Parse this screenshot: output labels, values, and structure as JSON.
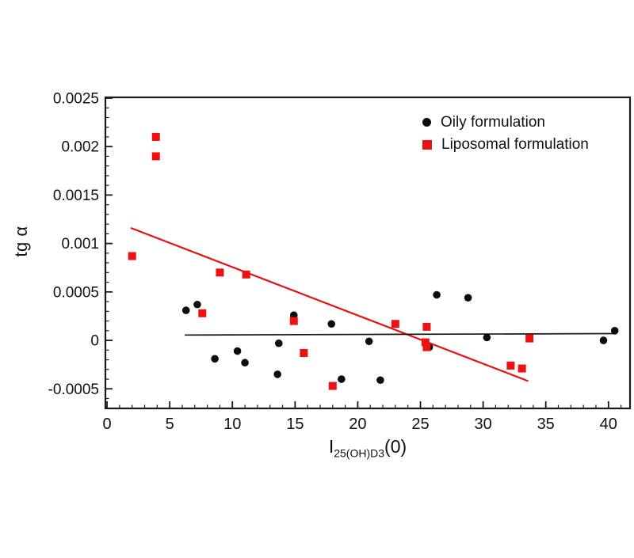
{
  "figure": {
    "background": "#ffffff"
  },
  "chart_data": {
    "type": "scatter",
    "title": "",
    "ylabel": "tg α",
    "xlabel": {
      "base": "I",
      "subscript": "25(OH)D3",
      "suffix": "(0)"
    },
    "xlim": [
      -0.13,
      41.72
    ],
    "ylim": [
      -0.000702,
      0.002508
    ],
    "grid": false,
    "axis_color": "#1a1a1a",
    "x_ticks": [
      0,
      5,
      10,
      15,
      20,
      25,
      30,
      35,
      40
    ],
    "x_tick_labels": [
      "0",
      "5",
      "10",
      "15",
      "20",
      "25",
      "30",
      "35",
      "40"
    ],
    "x_minor_step": 1,
    "y_ticks": [
      -0.0005,
      0,
      0.0005,
      0.001,
      0.0015,
      0.002,
      0.0025
    ],
    "y_tick_labels": [
      "-0.0005",
      "0",
      "0.0005",
      "0.001",
      "0.0015",
      "0.002",
      "0.0025"
    ],
    "y_minor_step": 0.0001,
    "series": [
      {
        "name": "Oily formulation",
        "marker": "circle",
        "color": "#0d0d0d",
        "points": [
          [
            6.3,
            0.00031
          ],
          [
            7.2,
            0.00037
          ],
          [
            8.6,
            -0.00019
          ],
          [
            10.4,
            -0.00011
          ],
          [
            11.0,
            -0.00023
          ],
          [
            13.6,
            -0.00035
          ],
          [
            13.7,
            -3e-05
          ],
          [
            14.9,
            0.00026
          ],
          [
            17.9,
            0.00017
          ],
          [
            18.7,
            -0.0004
          ],
          [
            20.9,
            -1e-05
          ],
          [
            21.8,
            -0.00041
          ],
          [
            25.7,
            -7e-05
          ],
          [
            26.3,
            0.00047
          ],
          [
            28.8,
            0.00044
          ],
          [
            30.3,
            3e-05
          ],
          [
            39.6,
            0.0
          ],
          [
            40.5,
            0.0001
          ]
        ]
      },
      {
        "name": "Liposomal formulation",
        "marker": "square",
        "color": "#ee1111",
        "points": [
          [
            2.0,
            0.00087
          ],
          [
            3.9,
            0.0021
          ],
          [
            3.9,
            0.0019
          ],
          [
            7.6,
            0.00028
          ],
          [
            9.0,
            0.0007
          ],
          [
            11.1,
            0.00068
          ],
          [
            14.9,
            0.0002
          ],
          [
            15.7,
            -0.00013
          ],
          [
            18.0,
            -0.00047
          ],
          [
            23.0,
            0.00017
          ],
          [
            25.5,
            0.00014
          ],
          [
            25.4,
            -2e-05
          ],
          [
            25.5,
            -7e-05
          ],
          [
            32.2,
            -0.00026
          ],
          [
            33.1,
            -0.00029
          ],
          [
            33.7,
            2e-05
          ]
        ]
      }
    ],
    "trend_lines": [
      {
        "series": "Liposomal formulation",
        "color": "#e81111",
        "width": 2.2,
        "x1": 1.9,
        "y1": 0.00116,
        "x2": 33.6,
        "y2": -0.00042
      },
      {
        "series": "Oily formulation",
        "color": "#1a1a1a",
        "width": 1.7,
        "x1": 6.2,
        "y1": 5.5e-05,
        "x2": 40.6,
        "y2": 7e-05
      }
    ],
    "legend": {
      "position": "top-right",
      "items": [
        {
          "label": "Oily formulation",
          "marker": "circle",
          "color": "#0d0d0d"
        },
        {
          "label": "Liposomal formulation",
          "marker": "square",
          "color": "#ee1111"
        }
      ]
    }
  }
}
